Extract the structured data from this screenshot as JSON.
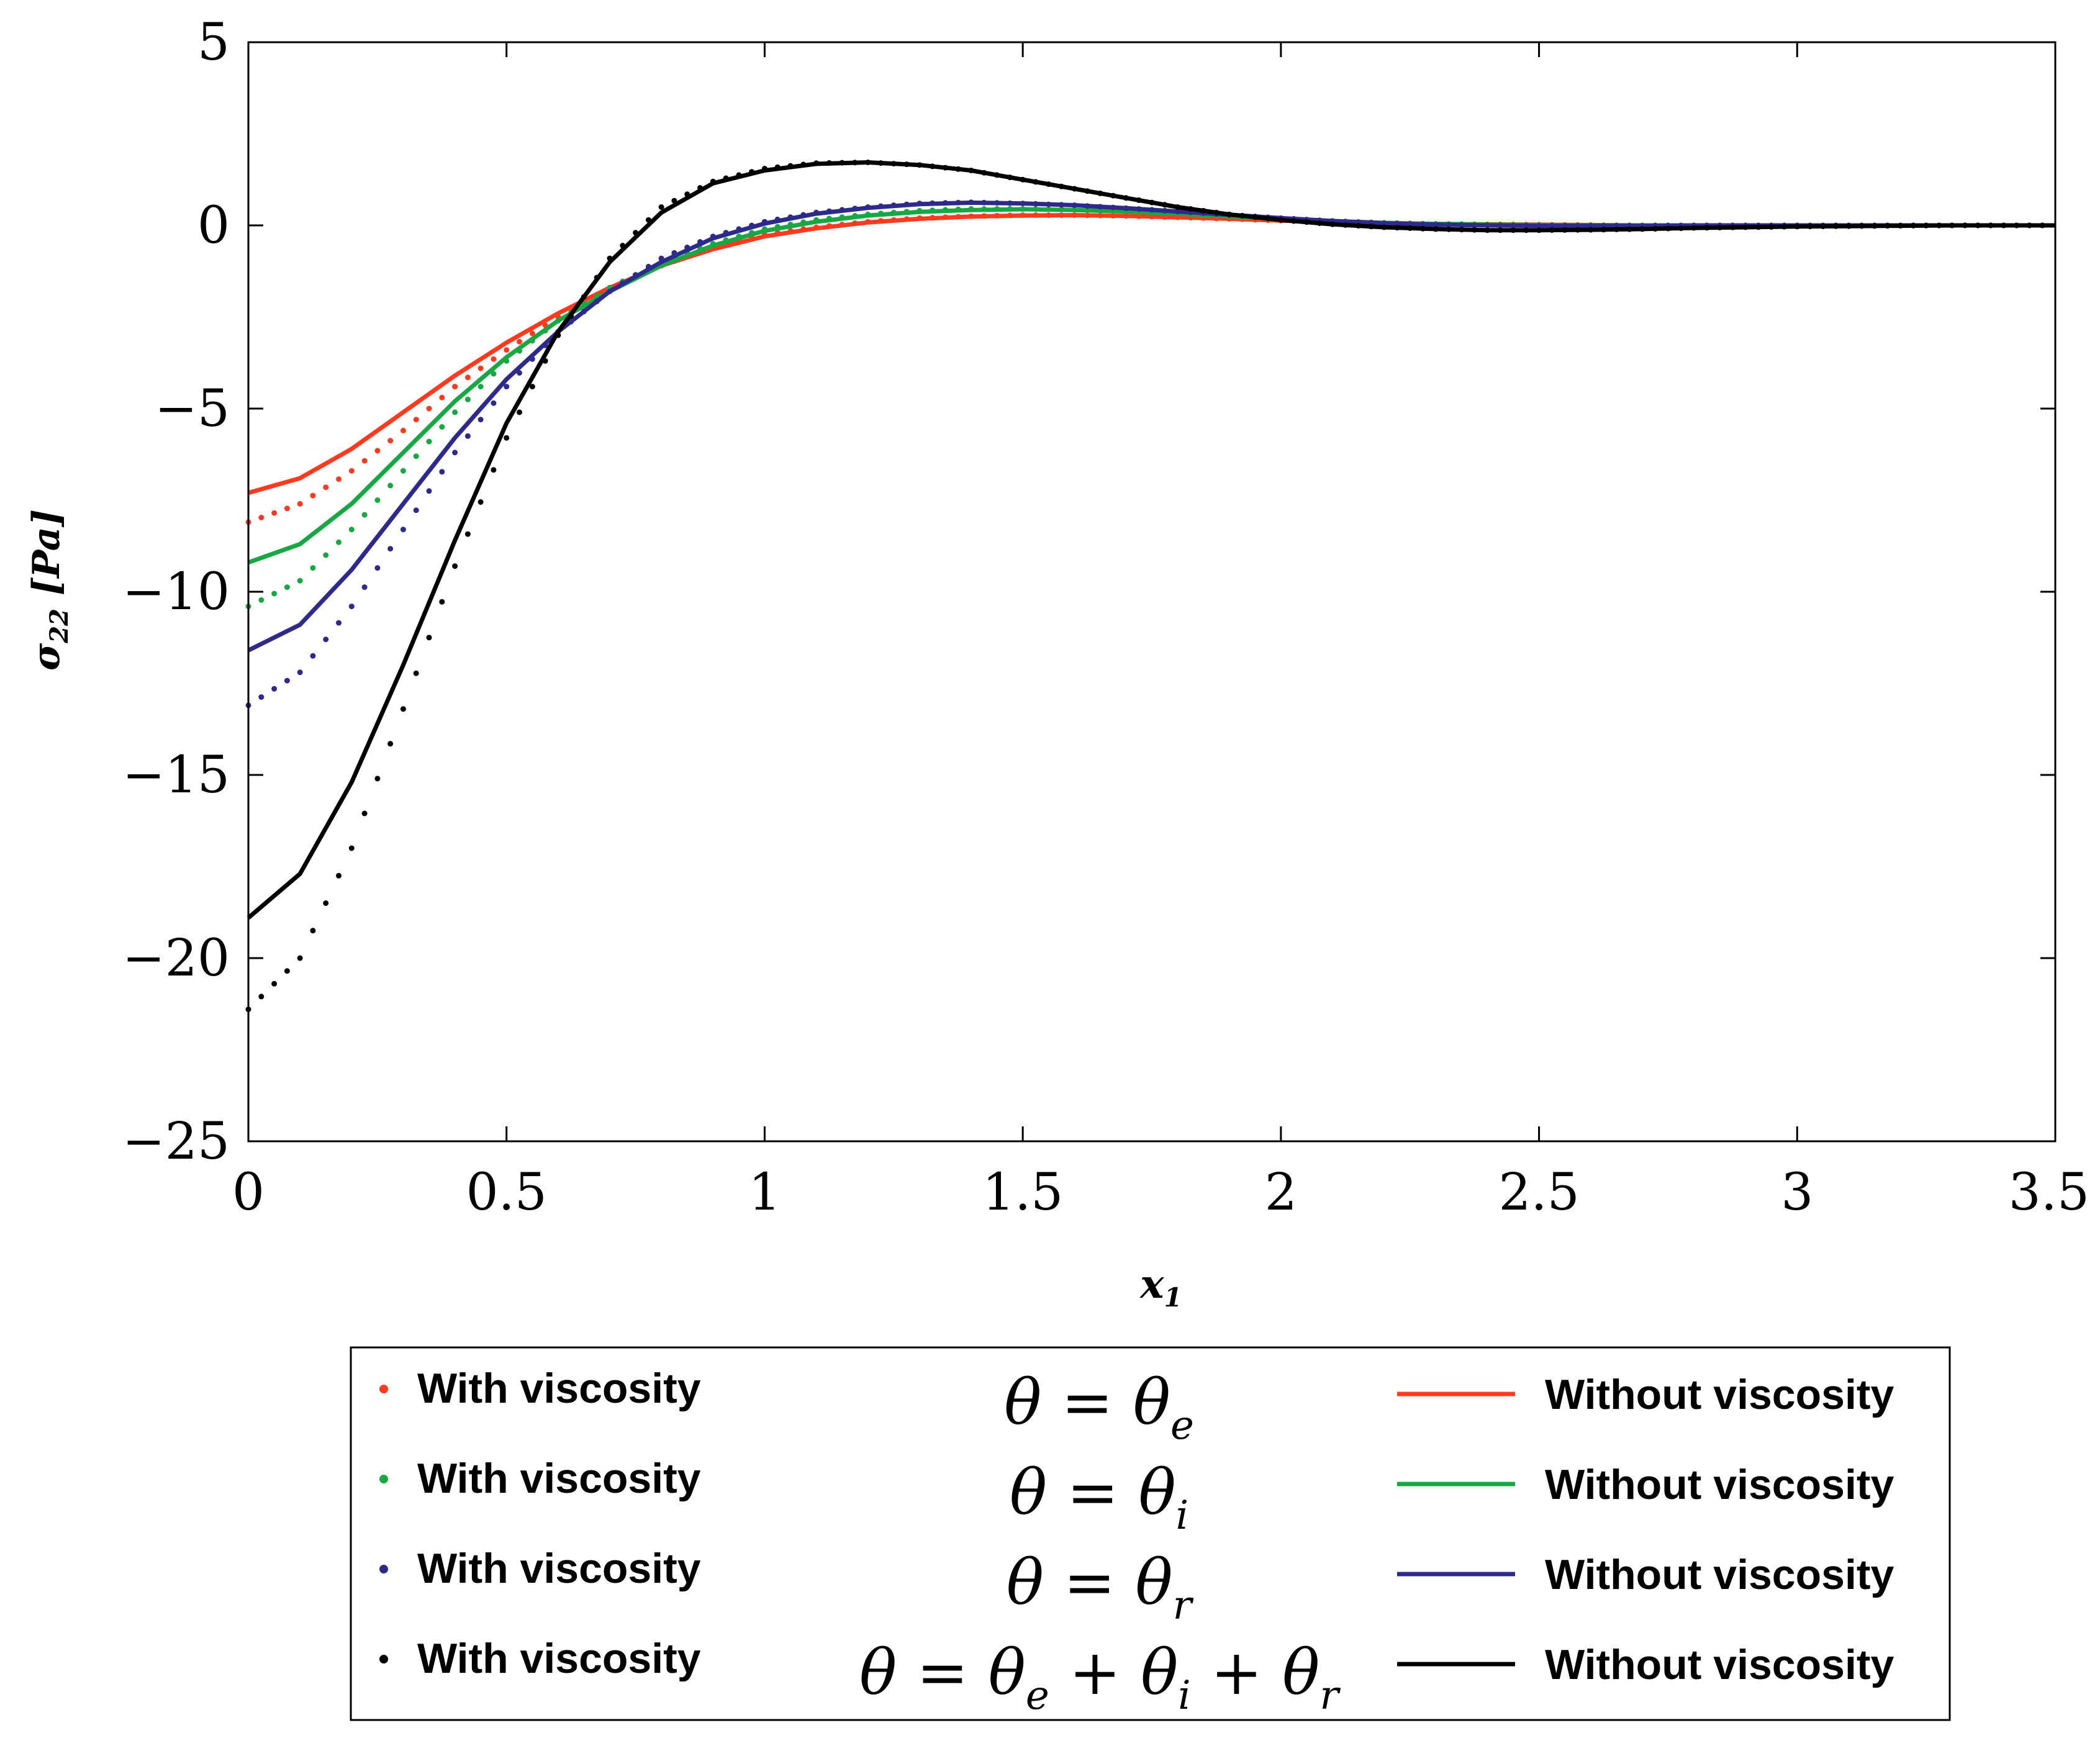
{
  "chart_data": {
    "type": "line",
    "title": "",
    "xlabel": {
      "base": "x",
      "sub": "1"
    },
    "ylabel": {
      "base": "σ",
      "sub": "22",
      "unit": "[Pa]"
    },
    "xlim": [
      0,
      3.5
    ],
    "ylim": [
      -25,
      5
    ],
    "xticks": [
      "0",
      "0.5",
      "1",
      "1.5",
      "2",
      "2.5",
      "3",
      "3.5"
    ],
    "yticks": [
      "5",
      "0",
      "−5",
      "−10",
      "−15",
      "−20",
      "−25"
    ],
    "grid": false,
    "x": [
      0,
      0.1,
      0.2,
      0.3,
      0.4,
      0.5,
      0.6,
      0.7,
      0.8,
      0.9,
      1.0,
      1.1,
      1.2,
      1.3,
      1.4,
      1.5,
      1.6,
      1.7,
      1.8,
      1.9,
      2.0,
      2.1,
      2.2,
      2.3,
      2.4,
      2.5,
      2.6,
      2.7,
      2.8,
      2.9,
      3.0,
      3.1,
      3.2,
      3.3,
      3.4,
      3.5
    ],
    "series": [
      {
        "name": "With viscosity",
        "theta_label": "θ = θe",
        "color": "#ff3b1f",
        "style": "dotted",
        "values": [
          -8.1,
          -7.6,
          -6.7,
          -5.6,
          -4.4,
          -3.4,
          -2.5,
          -1.7,
          -1.1,
          -0.6,
          -0.25,
          -0.05,
          0.1,
          0.2,
          0.25,
          0.28,
          0.28,
          0.26,
          0.22,
          0.18,
          0.13,
          0.09,
          0.06,
          0.04,
          0.03,
          0.02,
          0.01,
          0.0,
          0.0,
          0.0,
          0.0,
          0.0,
          0.0,
          0.0,
          0.0,
          0.0
        ]
      },
      {
        "name": "Without viscosity",
        "theta_label": "θ = θe",
        "color": "#ff3b1f",
        "style": "solid",
        "values": [
          -7.3,
          -6.9,
          -6.1,
          -5.1,
          -4.1,
          -3.2,
          -2.4,
          -1.7,
          -1.1,
          -0.65,
          -0.3,
          -0.08,
          0.08,
          0.18,
          0.24,
          0.27,
          0.28,
          0.26,
          0.22,
          0.18,
          0.13,
          0.09,
          0.06,
          0.04,
          0.03,
          0.02,
          0.01,
          0.0,
          0.0,
          0.0,
          0.0,
          0.0,
          0.0,
          0.0,
          0.0,
          0.0
        ]
      },
      {
        "name": "With viscosity",
        "theta_label": "θ = θi",
        "color": "#17a844",
        "style": "dotted",
        "values": [
          -10.4,
          -9.7,
          -8.3,
          -6.7,
          -5.1,
          -3.7,
          -2.6,
          -1.7,
          -1.0,
          -0.5,
          -0.1,
          0.15,
          0.3,
          0.4,
          0.45,
          0.45,
          0.43,
          0.38,
          0.32,
          0.25,
          0.18,
          0.12,
          0.07,
          0.04,
          0.02,
          0.01,
          0.0,
          0.0,
          0.0,
          0.0,
          0.0,
          0.0,
          0.0,
          0.0,
          0.0,
          0.0
        ]
      },
      {
        "name": "Without viscosity",
        "theta_label": "θ = θi",
        "color": "#17a844",
        "style": "solid",
        "values": [
          -9.2,
          -8.7,
          -7.6,
          -6.2,
          -4.8,
          -3.6,
          -2.6,
          -1.8,
          -1.1,
          -0.55,
          -0.15,
          0.1,
          0.27,
          0.37,
          0.42,
          0.44,
          0.42,
          0.38,
          0.32,
          0.25,
          0.18,
          0.12,
          0.07,
          0.04,
          0.02,
          0.01,
          0.0,
          0.0,
          0.0,
          0.0,
          0.0,
          0.0,
          0.0,
          0.0,
          0.0,
          0.0
        ]
      },
      {
        "name": "With viscosity",
        "theta_label": "θ = θr",
        "color": "#2e2a8c",
        "style": "dotted",
        "values": [
          -13.1,
          -12.2,
          -10.4,
          -8.3,
          -6.2,
          -4.4,
          -2.9,
          -1.8,
          -0.9,
          -0.3,
          0.1,
          0.35,
          0.5,
          0.6,
          0.63,
          0.6,
          0.55,
          0.47,
          0.38,
          0.29,
          0.2,
          0.12,
          0.06,
          0.02,
          0.0,
          -0.01,
          -0.01,
          -0.01,
          0.0,
          0.0,
          0.0,
          0.0,
          0.0,
          0.0,
          0.0,
          0.0
        ]
      },
      {
        "name": "Without viscosity",
        "theta_label": "θ = θr",
        "color": "#2e2a8c",
        "style": "solid",
        "values": [
          -11.6,
          -10.9,
          -9.4,
          -7.6,
          -5.8,
          -4.2,
          -2.9,
          -1.8,
          -1.0,
          -0.35,
          0.05,
          0.32,
          0.48,
          0.58,
          0.62,
          0.6,
          0.55,
          0.47,
          0.38,
          0.29,
          0.2,
          0.12,
          0.06,
          0.02,
          0.0,
          -0.01,
          -0.01,
          -0.01,
          0.0,
          0.0,
          0.0,
          0.0,
          0.0,
          0.0,
          0.0,
          0.0
        ]
      },
      {
        "name": "With viscosity",
        "theta_label": "θ = θe + θi + θr",
        "color": "#000000",
        "style": "dotted",
        "values": [
          -21.4,
          -20.0,
          -17.0,
          -13.2,
          -9.3,
          -5.8,
          -3.0,
          -0.9,
          0.5,
          1.2,
          1.55,
          1.7,
          1.72,
          1.65,
          1.5,
          1.25,
          1.0,
          0.75,
          0.5,
          0.3,
          0.15,
          0.03,
          -0.05,
          -0.1,
          -0.13,
          -0.13,
          -0.12,
          -0.1,
          -0.07,
          -0.05,
          -0.03,
          -0.02,
          -0.01,
          0.0,
          0.0,
          0.0
        ]
      },
      {
        "name": "Without viscosity",
        "theta_label": "θ = θe + θi + θr",
        "color": "#000000",
        "style": "solid",
        "values": [
          -18.9,
          -17.7,
          -15.2,
          -12.0,
          -8.6,
          -5.4,
          -2.9,
          -1.0,
          0.35,
          1.15,
          1.5,
          1.68,
          1.72,
          1.65,
          1.5,
          1.25,
          1.0,
          0.75,
          0.5,
          0.3,
          0.15,
          0.03,
          -0.05,
          -0.1,
          -0.13,
          -0.13,
          -0.12,
          -0.1,
          -0.07,
          -0.05,
          -0.03,
          -0.02,
          -0.01,
          0.0,
          0.0,
          0.0
        ]
      }
    ],
    "legend": {
      "placement": "bottom",
      "rows": [
        {
          "left_label": "With viscosity",
          "theta": {
            "lhs": "θ",
            "rhs": [
              {
                "b": "θ",
                "s": "e"
              }
            ]
          },
          "right_label": "Without viscosity",
          "color": "#ff3b1f"
        },
        {
          "left_label": "With viscosity",
          "theta": {
            "lhs": "θ",
            "rhs": [
              {
                "b": "θ",
                "s": "i"
              }
            ]
          },
          "right_label": "Without viscosity",
          "color": "#17a844"
        },
        {
          "left_label": "With viscosity",
          "theta": {
            "lhs": "θ",
            "rhs": [
              {
                "b": "θ",
                "s": "r"
              }
            ]
          },
          "right_label": "Without viscosity",
          "color": "#2e2a8c"
        },
        {
          "left_label": "With viscosity",
          "theta": {
            "lhs": "θ",
            "rhs": [
              {
                "b": "θ",
                "s": "e"
              },
              {
                "b": "θ",
                "s": "i"
              },
              {
                "b": "θ",
                "s": "r"
              }
            ]
          },
          "right_label": "Without viscosity",
          "color": "#000000"
        }
      ]
    }
  }
}
